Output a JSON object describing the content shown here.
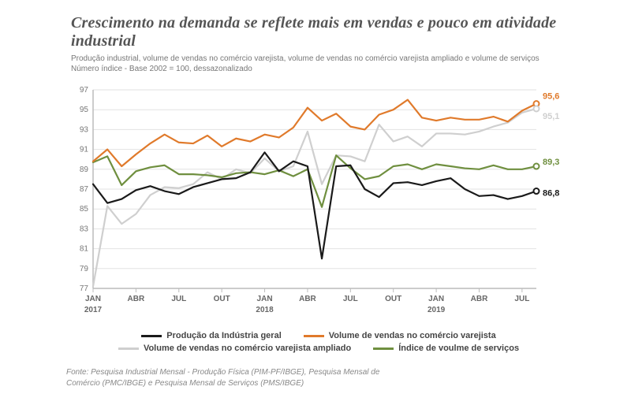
{
  "title": "Crescimento na demanda se reflete mais em vendas e pouco em atividade industrial",
  "subtitle_line1": "Produção industrial, volume de vendas no comércio varejista, volume de vendas no comércio varejista ampliado e volume de serviços",
  "subtitle_line2": "Número índice - Base 2002 = 100, dessazonalizado",
  "source_line1": "Fonte: Pesquisa Industrial Mensal - Produção Física (PIM-PF/IBGE), Pesquisa Mensal de",
  "source_line2": "Comércio (PMC/IBGE) e Pesquisa Mensal de Serviços (PMS/IBGE)",
  "chart": {
    "type": "line",
    "background_color": "#ffffff",
    "gridline_color": "#e2e2e2",
    "axis_color": "#bcbcbc",
    "ylim": [
      77,
      97
    ],
    "ytick_step": 2,
    "y_ticks": [
      77,
      79,
      81,
      83,
      85,
      87,
      89,
      91,
      93,
      95,
      97
    ],
    "months": [
      "JAN",
      "FEV",
      "MAR",
      "ABR",
      "MAI",
      "JUN",
      "JUL",
      "AGO",
      "SET",
      "OUT",
      "NOV",
      "DEZ",
      "JAN",
      "FEV",
      "MAR",
      "ABR",
      "MAI",
      "JUN",
      "JUL",
      "AGO",
      "SET",
      "OUT",
      "NOV",
      "DEZ",
      "JAN",
      "FEV",
      "MAR",
      "ABR",
      "MAI",
      "JUN",
      "JUL",
      "AGO"
    ],
    "x_major_labels": [
      {
        "idx": 0,
        "month": "JAN",
        "year": "2017"
      },
      {
        "idx": 3,
        "month": "ABR"
      },
      {
        "idx": 6,
        "month": "JUL"
      },
      {
        "idx": 9,
        "month": "OUT"
      },
      {
        "idx": 12,
        "month": "JAN",
        "year": "2018"
      },
      {
        "idx": 15,
        "month": "ABR"
      },
      {
        "idx": 18,
        "month": "JUL"
      },
      {
        "idx": 21,
        "month": "OUT"
      },
      {
        "idx": 24,
        "month": "JAN",
        "year": "2019"
      },
      {
        "idx": 27,
        "month": "ABR"
      },
      {
        "idx": 30,
        "month": "JUL"
      }
    ],
    "line_width": 2.2,
    "end_marker_radius": 3.5,
    "series": [
      {
        "id": "producao",
        "label": "Produção da Indústria geral",
        "color": "#1a1a1a",
        "end_label": "86,8",
        "end_label_dy": 6,
        "data": [
          87.5,
          85.6,
          86.0,
          86.9,
          87.3,
          86.8,
          86.5,
          87.2,
          87.6,
          88.0,
          88.1,
          88.7,
          90.7,
          88.8,
          89.8,
          89.3,
          80.0,
          89.3,
          89.4,
          87.0,
          86.2,
          87.6,
          87.7,
          87.4,
          87.8,
          88.1,
          87.0,
          86.3,
          86.4,
          86.0,
          86.3,
          86.8
        ]
      },
      {
        "id": "varejista",
        "label": "Volume de vendas no comércio varejista",
        "color": "#e07a2b",
        "end_label": "95,6",
        "end_label_dy": -6,
        "data": [
          89.8,
          91.0,
          89.3,
          90.5,
          91.6,
          92.5,
          91.7,
          91.6,
          92.4,
          91.3,
          92.1,
          91.8,
          92.5,
          92.2,
          93.2,
          95.2,
          93.9,
          94.6,
          93.3,
          93.0,
          94.5,
          95.0,
          96.0,
          94.2,
          93.9,
          94.2,
          94.0,
          94.0,
          94.3,
          93.8,
          94.9,
          95.6
        ]
      },
      {
        "id": "ampliado",
        "label": "Volume de vendas no comércio varejista ampliado",
        "color": "#cfcfcf",
        "end_label": "95,1",
        "end_label_dy": 13,
        "data": [
          77.2,
          85.3,
          83.5,
          84.5,
          86.4,
          87.2,
          87.1,
          87.5,
          88.7,
          88.0,
          89.0,
          88.6,
          90.1,
          88.8,
          89.3,
          92.8,
          87.5,
          90.4,
          90.3,
          89.8,
          93.5,
          91.8,
          92.3,
          91.3,
          92.6,
          92.6,
          92.5,
          92.8,
          93.3,
          93.7,
          94.7,
          95.1
        ]
      },
      {
        "id": "servicos",
        "label": "Índice de voulme de serviços",
        "color": "#6f8f3f",
        "end_label": "89,3",
        "end_label_dy": -2,
        "data": [
          89.7,
          90.3,
          87.4,
          88.8,
          89.2,
          89.4,
          88.5,
          88.5,
          88.4,
          88.2,
          88.6,
          88.7,
          88.5,
          88.9,
          88.3,
          89.0,
          85.2,
          90.4,
          89.1,
          88.0,
          88.3,
          89.3,
          89.5,
          89.0,
          89.5,
          89.3,
          89.1,
          89.0,
          89.4,
          89.0,
          89.0,
          89.3
        ]
      }
    ],
    "legend_order": [
      "producao",
      "varejista",
      "ampliado",
      "servicos"
    ]
  }
}
